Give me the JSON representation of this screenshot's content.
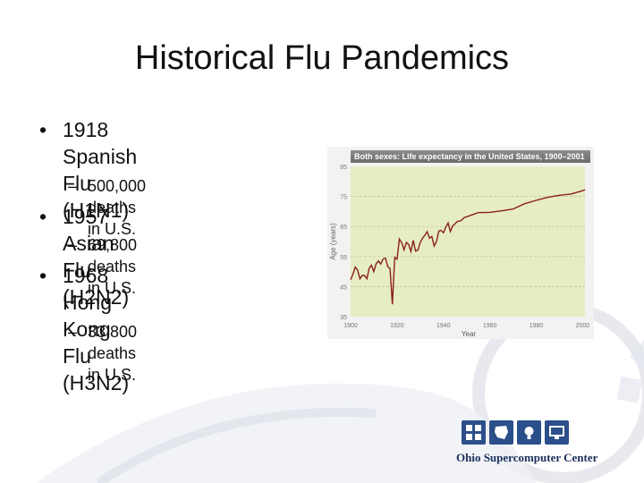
{
  "slide": {
    "title": "Historical Flu Pandemics",
    "bullets": [
      {
        "line1": "1918 Spanish Flu",
        "line2": "(H1N1)",
        "sub": "500,000 deaths in U.S."
      },
      {
        "line1": "1957 Asian Flu (H2N2)",
        "line2": "",
        "sub": "69,800 deaths in U.S."
      },
      {
        "line1": "1968 Hong Kong Flu",
        "line2": "(H3N2)",
        "sub": "33,800 deaths in U.S."
      }
    ],
    "bullet_glyph": "•",
    "dash_glyph": "–"
  },
  "chart_data": {
    "type": "line",
    "title": "Both sexes: Life expectancy in the United States, 1900–2001",
    "xlabel": "Year",
    "ylabel": "Age (years)",
    "xlim": [
      1900,
      2001
    ],
    "ylim": [
      35,
      85
    ],
    "xticks": [
      "1900",
      "1920",
      "1940",
      "1960",
      "1980",
      "2000"
    ],
    "yticks": [
      "35",
      "45",
      "55",
      "65",
      "75",
      "85"
    ],
    "grid": "horizontal dashed",
    "series": [
      {
        "x": [
          1900,
          1901,
          1902,
          1903,
          1904,
          1905,
          1906,
          1907,
          1908,
          1909,
          1910,
          1911,
          1912,
          1913,
          1914,
          1915,
          1916,
          1917,
          1918,
          1919,
          1920,
          1921,
          1922,
          1923,
          1924,
          1925,
          1926,
          1927,
          1928,
          1929,
          1930,
          1931,
          1932,
          1933,
          1934,
          1935,
          1936,
          1937,
          1938,
          1939,
          1940,
          1941,
          1942,
          1943,
          1944,
          1945,
          1946,
          1947,
          1948,
          1949,
          1950,
          1955,
          1960,
          1965,
          1970,
          1975,
          1980,
          1985,
          1990,
          1995,
          2000,
          2001
        ],
        "values": [
          47.3,
          49.1,
          51.5,
          50.5,
          47.6,
          48.7,
          48.7,
          47.6,
          51.1,
          52.1,
          50.0,
          52.6,
          53.5,
          52.5,
          54.2,
          54.5,
          51.7,
          50.9,
          39.1,
          54.7,
          54.1,
          60.8,
          59.6,
          57.2,
          59.7,
          59.0,
          56.7,
          60.4,
          56.8,
          57.1,
          59.7,
          61.1,
          62.1,
          63.3,
          61.1,
          61.7,
          58.5,
          60.0,
          63.5,
          63.7,
          62.9,
          64.8,
          66.2,
          63.3,
          65.2,
          65.9,
          66.7,
          66.8,
          67.2,
          68.0,
          68.2,
          69.6,
          69.7,
          70.2,
          70.8,
          72.6,
          73.7,
          74.7,
          75.4,
          75.8,
          76.9,
          77.2
        ]
      }
    ],
    "line_color": "#8b1e1e",
    "plot_bg": "#e6edc3"
  },
  "logo": {
    "name": "Ohio Supercomputer Center",
    "accent": "#2b4f8a"
  }
}
